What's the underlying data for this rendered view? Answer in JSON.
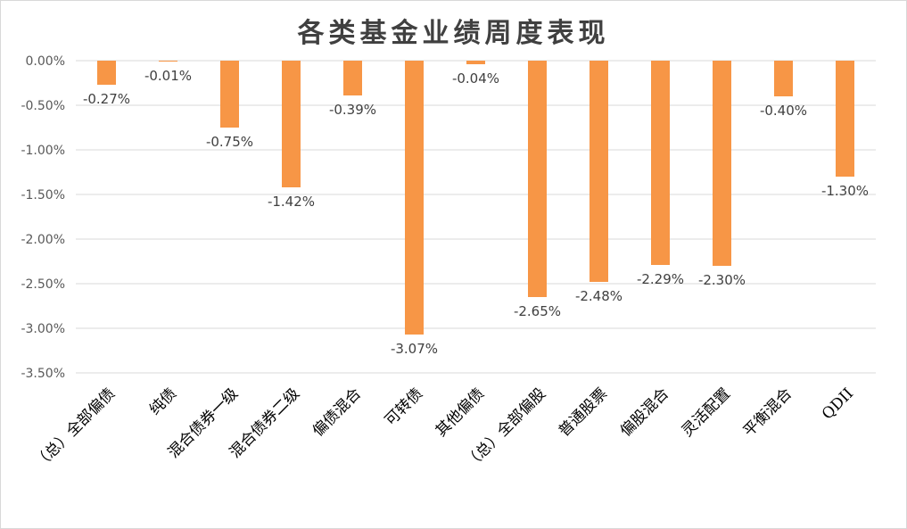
{
  "chart_data": {
    "type": "bar",
    "title": "各类基金业绩周度表现",
    "categories": [
      "（总）全部偏债",
      "纯债",
      "混合债券一级",
      "混合债券二级",
      "偏债混合",
      "可转债",
      "其他偏债",
      "（总）全部偏股",
      "普通股票",
      "偏股混合",
      "灵活配置",
      "平衡混合",
      "QDII"
    ],
    "values": [
      -0.27,
      -0.01,
      -0.75,
      -1.42,
      -0.39,
      -3.07,
      -0.04,
      -2.65,
      -2.48,
      -2.29,
      -2.3,
      -0.4,
      -1.3
    ],
    "data_labels": [
      "-0.27%",
      "-0.01%",
      "-0.75%",
      "-1.42%",
      "-0.39%",
      "-3.07%",
      "-0.04%",
      "-2.65%",
      "-2.48%",
      "-2.29%",
      "-2.30%",
      "-0.40%",
      "-1.30%"
    ],
    "y_ticks": [
      0,
      -0.5,
      -1.0,
      -1.5,
      -2.0,
      -2.5,
      -3.0,
      -3.5
    ],
    "y_tick_labels": [
      "0.00%",
      "-0.50%",
      "-1.00%",
      "-1.50%",
      "-2.00%",
      "-2.50%",
      "-3.00%",
      "-3.50%"
    ],
    "ylim": [
      -3.5,
      0
    ],
    "xlabel": "",
    "ylabel": "",
    "grid": true,
    "legend": "none",
    "colors": {
      "bar": "#F79646",
      "grid": "#D9D9D9",
      "text": "#404040"
    }
  }
}
